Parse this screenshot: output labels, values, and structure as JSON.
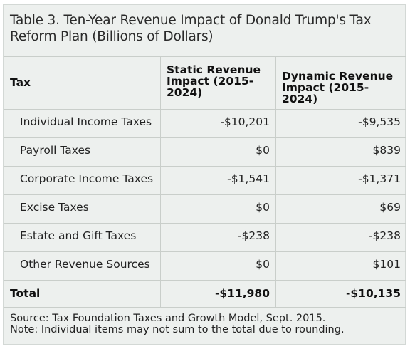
{
  "title": "Table 3. Ten-Year Revenue Impact of Donald Trump's Tax Reform Plan (Billions of Dollars)",
  "headers": {
    "tax": "Tax",
    "static": "Static Revenue Impact (2015-2024)",
    "dynamic": "Dynamic Revenue Impact (2015-2024)"
  },
  "rows": [
    {
      "tax": "Individual Income Taxes",
      "static": "-$10,201",
      "dynamic": "-$9,535"
    },
    {
      "tax": "Payroll Taxes",
      "static": "$0",
      "dynamic": "$839"
    },
    {
      "tax": "Corporate Income Taxes",
      "static": "-$1,541",
      "dynamic": "-$1,371"
    },
    {
      "tax": "Excise Taxes",
      "static": "$0",
      "dynamic": "$69"
    },
    {
      "tax": "Estate and Gift Taxes",
      "static": "-$238",
      "dynamic": "-$238"
    },
    {
      "tax": "Other Revenue Sources",
      "static": "$0",
      "dynamic": "$101"
    }
  ],
  "total": {
    "tax": "Total",
    "static": "-$11,980",
    "dynamic": "-$10,135"
  },
  "source": "Source: Tax Foundation Taxes and Growth Model, Sept. 2015.",
  "note": "Note: Individual items may not sum to the total due to rounding."
}
